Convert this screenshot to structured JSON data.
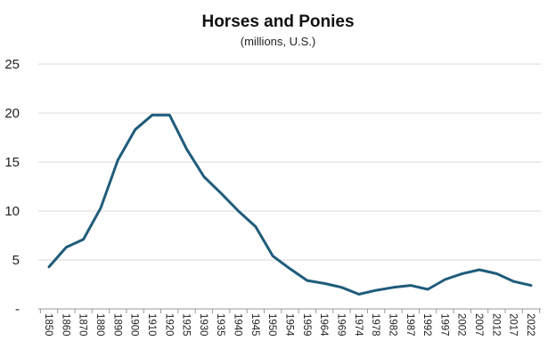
{
  "chart_data": {
    "type": "line",
    "title": "Horses and Ponies",
    "subtitle": "(millions, U.S.)",
    "xlabel": "",
    "ylabel": "",
    "ylim": [
      0,
      25
    ],
    "yticks": [
      0,
      5,
      10,
      15,
      20,
      25
    ],
    "ytick_labels": [
      "-",
      "5",
      "10",
      "15",
      "20",
      "25"
    ],
    "grid": true,
    "legend": "none",
    "x": [
      "1850",
      "1860",
      "1870",
      "1880",
      "1890",
      "1900",
      "1910",
      "1920",
      "1925",
      "1930",
      "1935",
      "1940",
      "1945",
      "1950",
      "1954",
      "1959",
      "1964",
      "1969",
      "1974",
      "1978",
      "1982",
      "1987",
      "1992",
      "1997",
      "2002",
      "2007",
      "2012",
      "2017",
      "2022"
    ],
    "series": [
      {
        "color": "#1f5c7a",
        "values": [
          4.3,
          6.3,
          7.1,
          10.3,
          15.2,
          18.3,
          19.8,
          19.8,
          16.3,
          13.5,
          11.8,
          10.0,
          8.4,
          5.4,
          4.1,
          2.9,
          2.6,
          2.2,
          1.5,
          1.9,
          2.2,
          2.4,
          2.0,
          3.0,
          3.6,
          4.0,
          3.6,
          2.8,
          2.4
        ]
      }
    ]
  }
}
